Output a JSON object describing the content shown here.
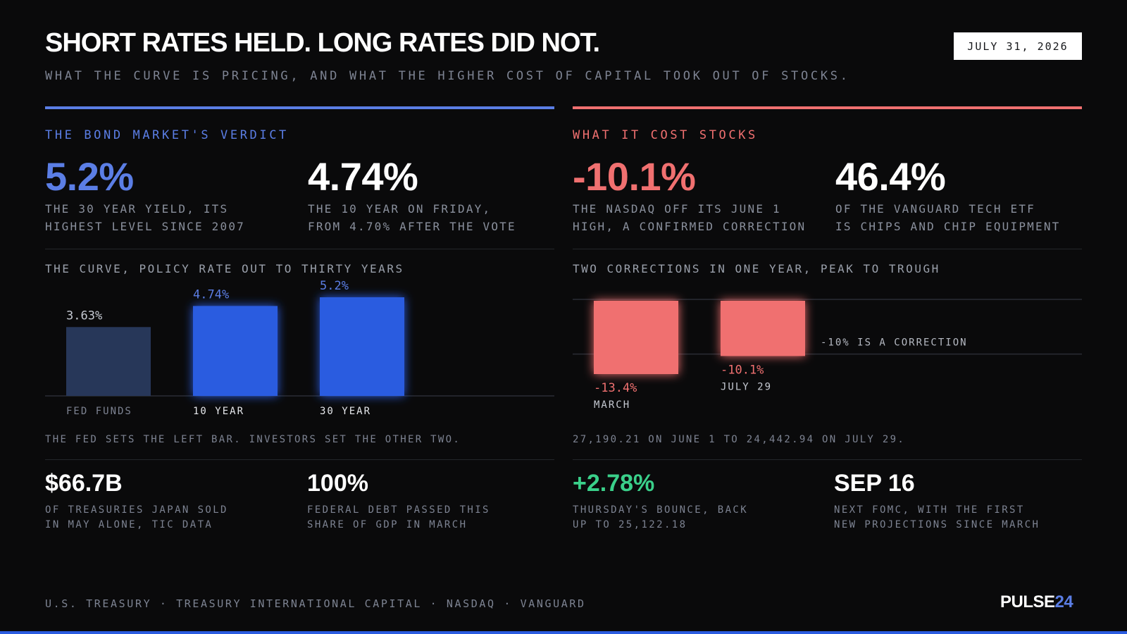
{
  "header": {
    "title": "SHORT RATES HELD. LONG RATES DID NOT.",
    "subtitle": "WHAT THE CURVE IS PRICING, AND WHAT THE HIGHER COST OF CAPITAL TOOK OUT OF STOCKS.",
    "date": "JULY 31, 2026"
  },
  "colors": {
    "blue_accent": "#5b7ee5",
    "blue_bar": "#2b5ce0",
    "navy_bar": "#273759",
    "red_accent": "#f07070",
    "green": "#3ad08a",
    "background": "#0a0a0b"
  },
  "left": {
    "heading": "THE BOND MARKET'S VERDICT",
    "stat1": {
      "value": "5.2%",
      "line1": "THE 30 YEAR YIELD, ITS",
      "line2": "HIGHEST LEVEL SINCE 2007"
    },
    "stat2": {
      "value": "4.74%",
      "line1": "THE 10 YEAR ON FRIDAY,",
      "line2": "FROM 4.70% AFTER THE VOTE"
    },
    "chart_title": "THE CURVE, POLICY RATE OUT TO THIRTY YEARS",
    "chart_note": "THE FED SETS THE LEFT BAR. INVESTORS SET THE OTHER TWO.",
    "stat3": {
      "value": "$66.7B",
      "line1": "OF TREASURIES JAPAN SOLD",
      "line2": "IN MAY ALONE, TIC DATA"
    },
    "stat4": {
      "value": "100%",
      "line1": "FEDERAL DEBT PASSED THIS",
      "line2": "SHARE OF GDP IN MARCH"
    }
  },
  "right": {
    "heading": "WHAT IT COST STOCKS",
    "stat1": {
      "value": "-10.1%",
      "line1": "THE NASDAQ OFF ITS JUNE 1",
      "line2": "HIGH, A CONFIRMED CORRECTION"
    },
    "stat2": {
      "value": "46.4%",
      "line1": "OF THE VANGUARD TECH ETF",
      "line2": "IS CHIPS AND CHIP EQUIPMENT"
    },
    "chart_title": "TWO CORRECTIONS IN ONE YEAR, PEAK TO TROUGH",
    "chart_note": "27,190.21 ON JUNE 1 TO 24,442.94 ON JULY 29.",
    "stat3": {
      "value": "+2.78%",
      "line1": "THURSDAY'S BOUNCE, BACK",
      "line2": "UP TO 25,122.18"
    },
    "stat4": {
      "value": "SEP 16",
      "line1": "NEXT FOMC, WITH THE FIRST",
      "line2": "NEW PROJECTIONS SINCE MARCH"
    }
  },
  "footer": {
    "sources": "U.S. TREASURY · TREASURY INTERNATIONAL CAPITAL · NASDAQ · VANGUARD",
    "logo_main": "PULSE",
    "logo_accent": "24"
  },
  "chart_data": [
    {
      "type": "bar",
      "categories": [
        "FED FUNDS",
        "10 YEAR",
        "30 YEAR"
      ],
      "values": [
        3.63,
        4.74,
        5.2
      ],
      "data_labels": [
        "3.63%",
        "4.74%",
        "5.2%"
      ],
      "ylim": [
        0,
        5.2
      ]
    },
    {
      "type": "bar",
      "categories": [
        "MARCH",
        "JULY 29"
      ],
      "values": [
        -13.4,
        -10.1
      ],
      "data_labels": [
        "-13.4%",
        "-10.1%"
      ],
      "reference_line": {
        "value": -10,
        "label": "-10% IS A CORRECTION"
      },
      "ylim": [
        -13.4,
        0
      ]
    }
  ]
}
